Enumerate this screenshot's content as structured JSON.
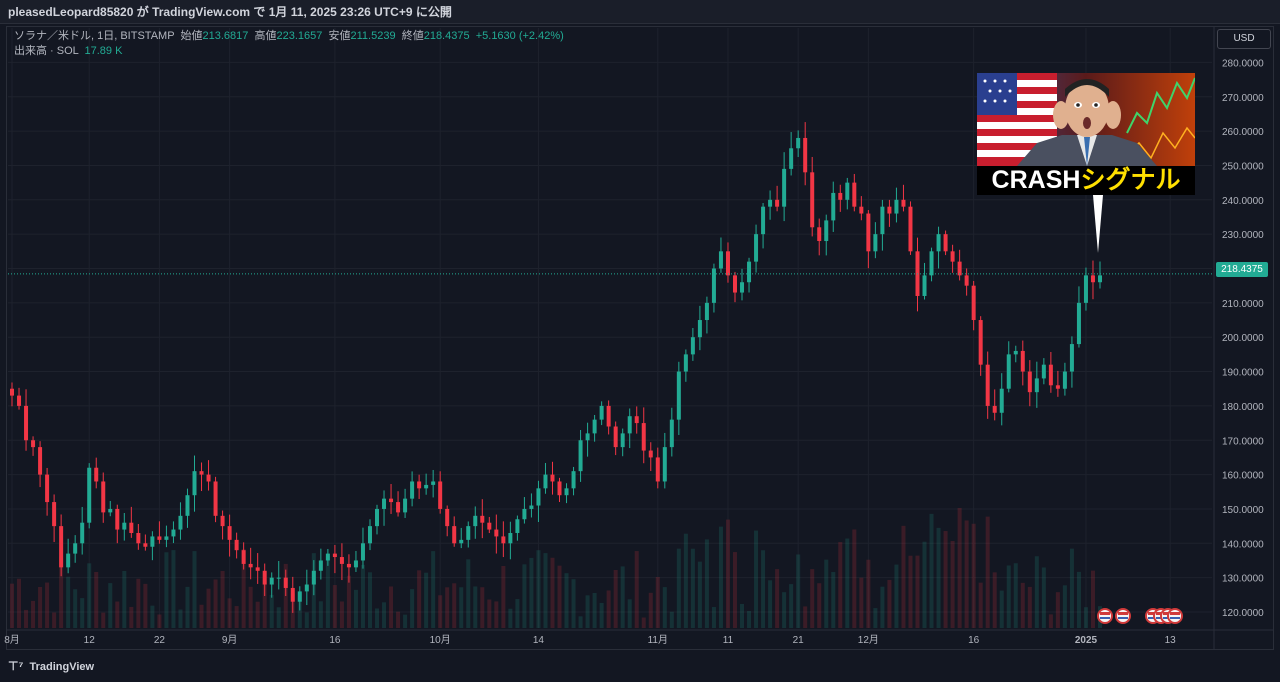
{
  "header": {
    "published_line": "pleasedLeopard85820 が TradingView.com で 1月 11, 2025 23:26 UTC+9 に公開"
  },
  "legend": {
    "symbol": "ソラナ／米ドル, 1日, BITSTAMP",
    "open_label": "始値",
    "open": "213.6817",
    "high_label": "高値",
    "high": "223.1657",
    "low_label": "安値",
    "low": "211.5239",
    "close_label": "終値",
    "close": "218.4375",
    "change": "+5.1630 (+2.42%)",
    "volume_label": "出来高 · SOL",
    "volume": "17.89 K"
  },
  "currency_button": "USD",
  "price_badge": "218.4375",
  "overlay": {
    "caption_white": "CRASH",
    "caption_yellow": "シグナル"
  },
  "footer": {
    "brand": "TradingView"
  },
  "colors": {
    "up": "#22ab94",
    "down": "#f23645",
    "background": "#131722",
    "grid": "#1e222d"
  },
  "chart_data": {
    "type": "candlestick",
    "symbol": "SOL/USD",
    "interval": "1D",
    "exchange": "BITSTAMP",
    "y_axis": {
      "ticks": [
        "280.0000",
        "270.0000",
        "260.0000",
        "250.0000",
        "240.0000",
        "230.0000",
        "220.0000",
        "210.0000",
        "200.0000",
        "190.0000",
        "180.0000",
        "170.0000",
        "160.0000",
        "150.0000",
        "140.0000",
        "130.0000",
        "120.0000"
      ],
      "range": [
        115,
        283
      ]
    },
    "x_axis": {
      "ticks": [
        "8月",
        "12",
        "22",
        "9月",
        "16",
        "10月",
        "14",
        "11月",
        "11",
        "21",
        "12月",
        "16",
        "2025",
        "13"
      ],
      "tick_day_index": [
        0,
        11,
        21,
        31,
        46,
        61,
        75,
        92,
        102,
        112,
        122,
        137,
        153,
        165
      ]
    },
    "last_price": 218.4375,
    "closes": [
      183,
      180,
      170,
      168,
      160,
      152,
      145,
      133,
      137,
      140,
      146,
      162,
      158,
      149,
      150,
      144,
      146,
      143,
      140,
      139,
      142,
      141,
      142,
      144,
      148,
      154,
      161,
      160,
      158,
      148,
      145,
      141,
      138,
      134,
      133,
      132,
      128,
      130,
      130,
      127,
      123,
      126,
      128,
      132,
      135,
      137,
      136,
      134,
      133,
      135,
      140,
      145,
      150,
      153,
      152,
      149,
      153,
      158,
      156,
      157,
      158,
      150,
      145,
      140,
      141,
      145,
      148,
      146,
      144,
      142,
      140,
      143,
      147,
      150,
      151,
      156,
      160,
      158,
      154,
      156,
      161,
      170,
      172,
      176,
      180,
      174,
      168,
      172,
      177,
      175,
      167,
      165,
      158,
      168,
      176,
      190,
      195,
      200,
      205,
      210,
      220,
      225,
      218,
      213,
      216,
      222,
      230,
      238,
      240,
      238,
      249,
      255,
      258,
      248,
      232,
      228,
      234,
      242,
      240,
      245,
      238,
      236,
      225,
      230,
      238,
      236,
      240,
      238,
      225,
      212,
      218,
      225,
      230,
      225,
      222,
      218,
      215,
      205,
      192,
      180,
      178,
      185,
      195,
      196,
      190,
      184,
      188,
      192,
      186,
      185,
      190,
      198,
      210,
      218,
      216,
      218
    ]
  }
}
